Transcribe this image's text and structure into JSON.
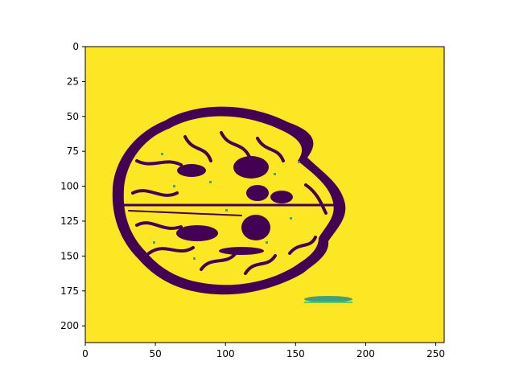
{
  "chart_data": {
    "type": "heatmap",
    "title": "",
    "xlabel": "",
    "ylabel": "",
    "xlim": [
      0,
      256
    ],
    "ylim": [
      212,
      0
    ],
    "x_ticks": [
      0,
      50,
      100,
      150,
      200,
      250
    ],
    "y_ticks": [
      0,
      25,
      50,
      75,
      100,
      125,
      150,
      175,
      200
    ],
    "colormap": "viridis",
    "values_present": [
      0,
      1
    ],
    "grid": false,
    "colors": {
      "background_value": "#fde725",
      "foreground_value": "#440154",
      "mid_value": "#21918c"
    }
  }
}
